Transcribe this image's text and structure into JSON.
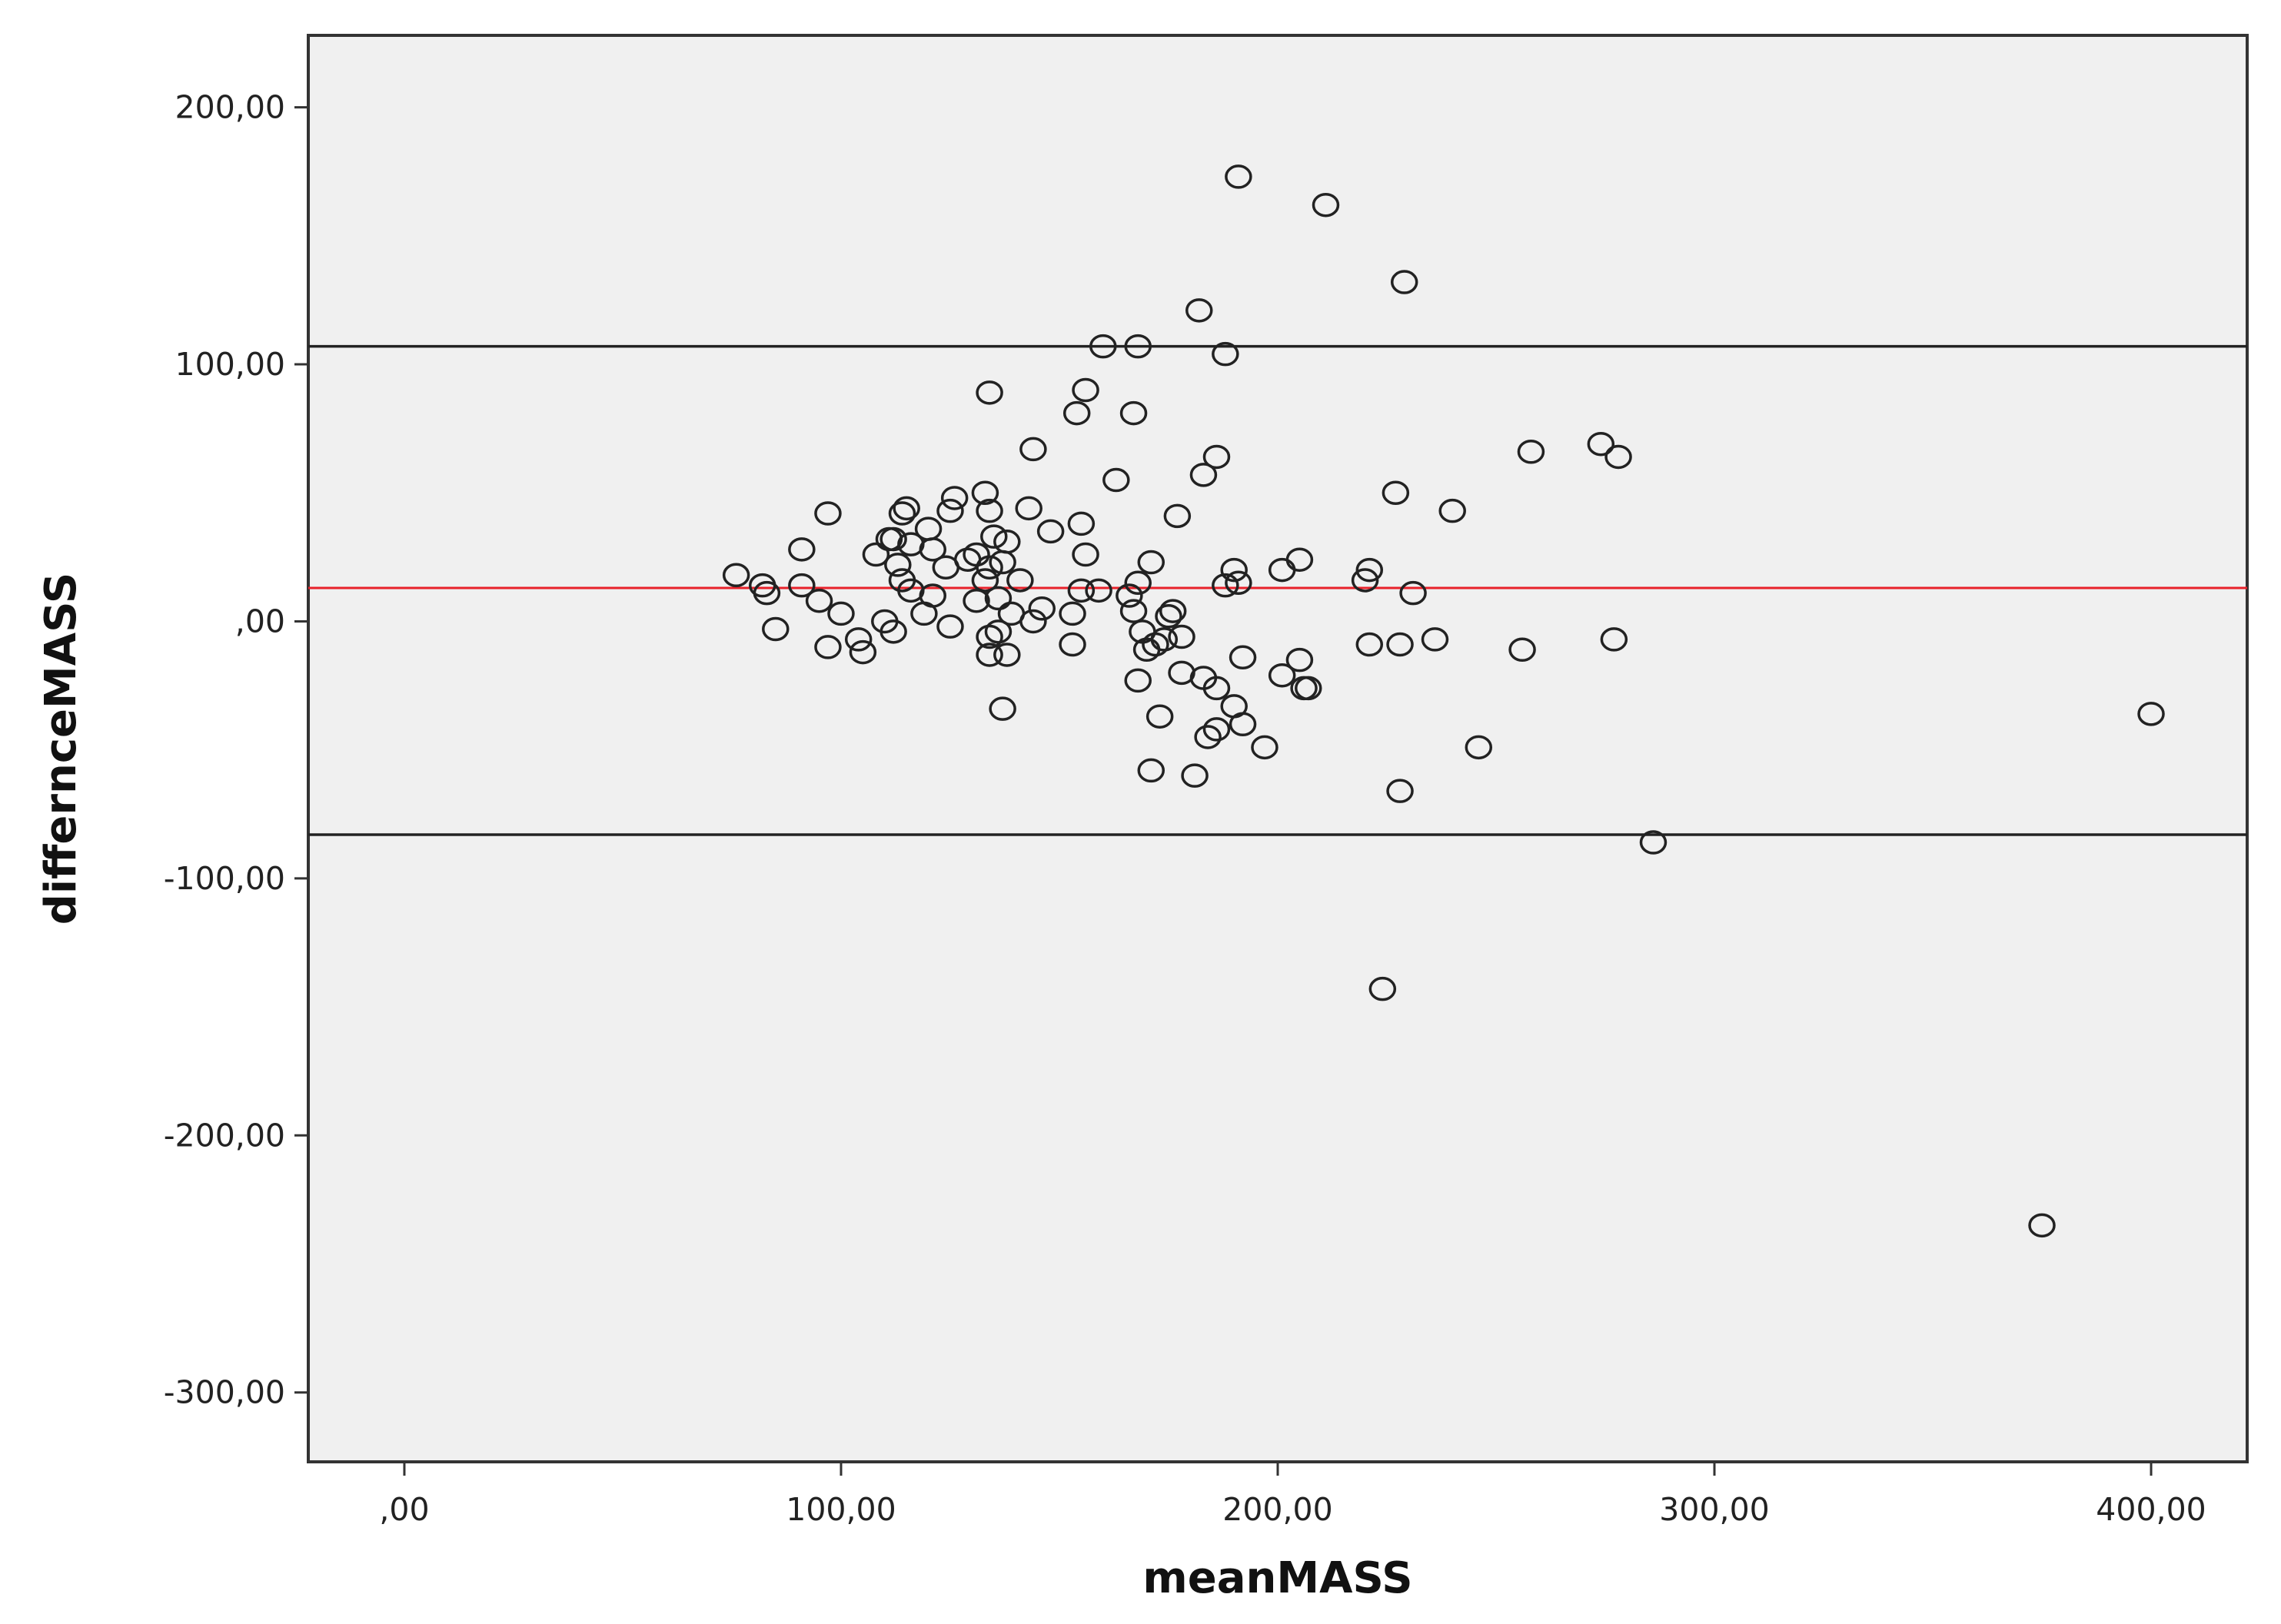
{
  "chart_data": {
    "type": "scatter",
    "title": "",
    "xlabel": "meanMASS",
    "ylabel": "differnceMASS",
    "xlim": [
      -22,
      422
    ],
    "ylim": [
      -327,
      228
    ],
    "x_ticks": [
      0,
      100,
      200,
      300,
      400
    ],
    "x_tick_labels": [
      ",00",
      "100,00",
      "200,00",
      "300,00",
      "400,00"
    ],
    "y_ticks": [
      200,
      100,
      0,
      -100,
      -200,
      -300
    ],
    "y_tick_labels": [
      "200,00",
      "100,00",
      ",00",
      "-100,00",
      "-200,00",
      "-300,00"
    ],
    "grid": false,
    "legend": "none",
    "colors": {
      "plot_background": "#f0f0f0",
      "mean_line": "#e8212a",
      "limit_line": "#222222",
      "marker": "#222222"
    },
    "reference_lines": [
      {
        "role": "upper-limit",
        "y": 107,
        "color": "#222222"
      },
      {
        "role": "mean-difference",
        "y": 13,
        "color": "#e8212a"
      },
      {
        "role": "lower-limit",
        "y": -83,
        "color": "#222222"
      }
    ],
    "series": [
      {
        "marker": "open-circle",
        "points": [
          [
            191,
            173
          ],
          [
            211,
            162
          ],
          [
            229,
            132
          ],
          [
            182,
            121
          ],
          [
            160,
            107
          ],
          [
            168,
            107
          ],
          [
            188,
            104
          ],
          [
            134,
            89
          ],
          [
            156,
            90
          ],
          [
            154,
            81
          ],
          [
            167,
            81
          ],
          [
            144,
            67
          ],
          [
            186,
            64
          ],
          [
            183,
            57
          ],
          [
            163,
            55
          ],
          [
            258,
            66
          ],
          [
            274,
            69
          ],
          [
            278,
            64
          ],
          [
            227,
            50
          ],
          [
            240,
            43
          ],
          [
            177,
            41
          ],
          [
            97,
            42
          ],
          [
            114,
            42
          ],
          [
            115,
            44
          ],
          [
            126,
            48
          ],
          [
            125,
            43
          ],
          [
            133,
            50
          ],
          [
            134,
            43
          ],
          [
            143,
            44
          ],
          [
            148,
            35
          ],
          [
            155,
            38
          ],
          [
            156,
            26
          ],
          [
            171,
            23
          ],
          [
            120,
            36
          ],
          [
            135,
            33
          ],
          [
            111,
            32
          ],
          [
            112,
            32
          ],
          [
            108,
            26
          ],
          [
            113,
            22
          ],
          [
            116,
            30
          ],
          [
            121,
            28
          ],
          [
            124,
            21
          ],
          [
            129,
            24
          ],
          [
            131,
            26
          ],
          [
            134,
            21
          ],
          [
            138,
            31
          ],
          [
            137,
            23
          ],
          [
            133,
            16
          ],
          [
            141,
            16
          ],
          [
            76,
            18
          ],
          [
            82,
            14
          ],
          [
            83,
            11
          ],
          [
            91,
            28
          ],
          [
            91,
            14
          ],
          [
            95,
            8
          ],
          [
            100,
            3
          ],
          [
            110,
            0
          ],
          [
            114,
            16
          ],
          [
            116,
            12
          ],
          [
            121,
            10
          ],
          [
            119,
            3
          ],
          [
            131,
            8
          ],
          [
            136,
            9
          ],
          [
            139,
            3
          ],
          [
            146,
            5
          ],
          [
            144,
            0
          ],
          [
            153,
            3
          ],
          [
            155,
            12
          ],
          [
            159,
            12
          ],
          [
            166,
            10
          ],
          [
            167,
            4
          ],
          [
            168,
            15
          ],
          [
            175,
            2
          ],
          [
            176,
            4
          ],
          [
            174,
            -7
          ],
          [
            169,
            -4
          ],
          [
            170,
            -11
          ],
          [
            178,
            -6
          ],
          [
            172,
            -9
          ],
          [
            188,
            14
          ],
          [
            190,
            20
          ],
          [
            191,
            15
          ],
          [
            201,
            20
          ],
          [
            205,
            24
          ],
          [
            221,
            20
          ],
          [
            220,
            16
          ],
          [
            231,
            11
          ],
          [
            85,
            -3
          ],
          [
            97,
            -10
          ],
          [
            104,
            -7
          ],
          [
            105,
            -12
          ],
          [
            112,
            -4
          ],
          [
            125,
            -2
          ],
          [
            134,
            -6
          ],
          [
            136,
            -4
          ],
          [
            134,
            -13
          ],
          [
            138,
            -13
          ],
          [
            153,
            -9
          ],
          [
            192,
            -14
          ],
          [
            205,
            -15
          ],
          [
            201,
            -21
          ],
          [
            206,
            -26
          ],
          [
            207,
            -26
          ],
          [
            221,
            -9
          ],
          [
            228,
            -9
          ],
          [
            236,
            -7
          ],
          [
            256,
            -11
          ],
          [
            277,
            -7
          ],
          [
            168,
            -23
          ],
          [
            178,
            -20
          ],
          [
            183,
            -22
          ],
          [
            186,
            -26
          ],
          [
            190,
            -33
          ],
          [
            192,
            -40
          ],
          [
            186,
            -42
          ],
          [
            184,
            -45
          ],
          [
            197,
            -49
          ],
          [
            173,
            -37
          ],
          [
            137,
            -34
          ],
          [
            171,
            -58
          ],
          [
            181,
            -60
          ],
          [
            228,
            -66
          ],
          [
            246,
            -49
          ],
          [
            400,
            -36
          ],
          [
            286,
            -86
          ],
          [
            224,
            -143
          ],
          [
            375,
            -235
          ]
        ]
      }
    ]
  }
}
